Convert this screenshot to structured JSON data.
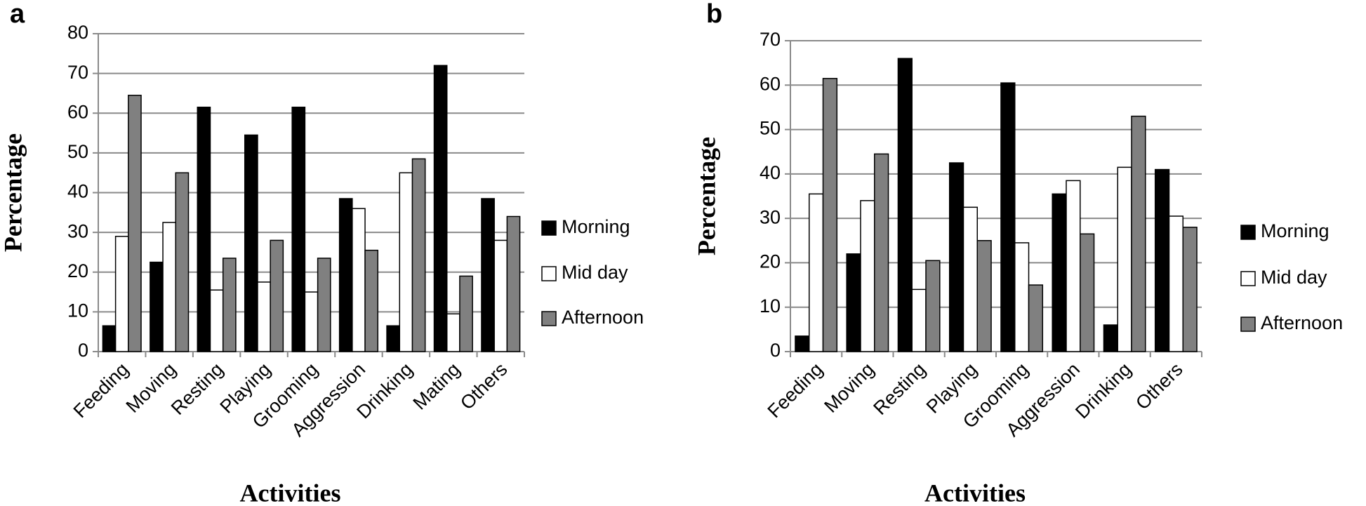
{
  "chart_data": [
    {
      "type": "bar",
      "panel": "a",
      "xlabel": "Activities",
      "ylabel": "Percentage",
      "categories": [
        "Feeding",
        "Moving",
        "Resting",
        "Playing",
        "Grooming",
        "Aggression",
        "Drinking",
        "Mating",
        "Others"
      ],
      "series": [
        {
          "name": "Morning",
          "color": "#000000",
          "values": [
            6.5,
            22.5,
            61.5,
            54.5,
            61.5,
            38.5,
            6.5,
            72,
            38.5
          ]
        },
        {
          "name": "Mid day",
          "color": "#ffffff",
          "values": [
            29,
            32.5,
            15.5,
            17.5,
            15,
            36,
            45,
            9.5,
            28
          ]
        },
        {
          "name": "Afternoon",
          "color": "#808080",
          "values": [
            64.5,
            45,
            23.5,
            28,
            23.5,
            25.5,
            48.5,
            19,
            34
          ]
        }
      ],
      "ylim": [
        0,
        80
      ],
      "yticks": [
        0,
        10,
        20,
        30,
        40,
        50,
        60,
        70,
        80
      ],
      "grid": true,
      "legend": "right"
    },
    {
      "type": "bar",
      "panel": "b",
      "xlabel": "Activities",
      "ylabel": "Percentage",
      "categories": [
        "Feeding",
        "Moving",
        "Resting",
        "Playing",
        "Grooming",
        "Aggression",
        "Drinking",
        "Others"
      ],
      "series": [
        {
          "name": "Morning",
          "color": "#000000",
          "values": [
            3.5,
            22,
            66,
            42.5,
            60.5,
            35.5,
            6,
            41
          ]
        },
        {
          "name": "Mid day",
          "color": "#ffffff",
          "values": [
            35.5,
            34,
            14,
            32.5,
            24.5,
            38.5,
            41.5,
            30.5
          ]
        },
        {
          "name": "Afternoon",
          "color": "#808080",
          "values": [
            61.5,
            44.5,
            20.5,
            25,
            15,
            26.5,
            53,
            28
          ]
        }
      ],
      "ylim": [
        0,
        70
      ],
      "yticks": [
        0,
        10,
        20,
        30,
        40,
        50,
        60,
        70
      ],
      "grid": true,
      "legend": "right"
    }
  ]
}
